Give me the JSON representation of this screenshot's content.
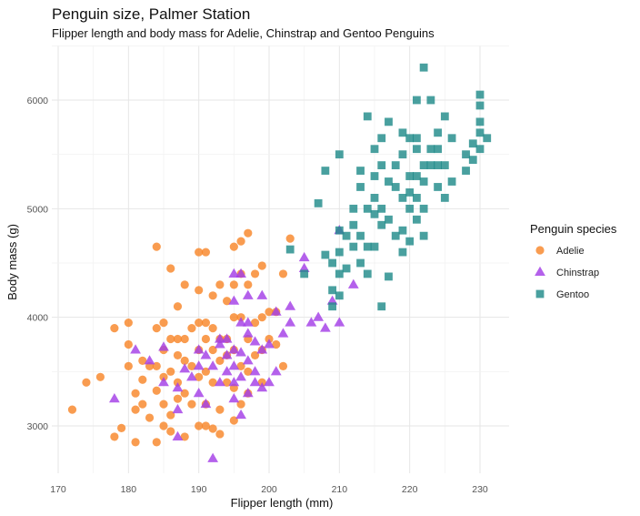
{
  "chart_data": {
    "type": "scatter",
    "title": "Penguin size, Palmer Station",
    "subtitle": "Flipper length and body mass for Adelie, Chinstrap and Gentoo Penguins",
    "xlabel": "Flipper length (mm)",
    "ylabel": "Body mass (g)",
    "xlim": [
      170,
      232
    ],
    "ylim": [
      2550,
      6450
    ],
    "xticks": [
      170,
      180,
      190,
      200,
      210,
      220,
      230
    ],
    "yticks": [
      3000,
      4000,
      5000,
      6000
    ],
    "grid": true,
    "legend": {
      "title": "Penguin species",
      "position": "right"
    },
    "series": [
      {
        "name": "Adelie",
        "color": "#F8862A",
        "marker": "circle",
        "points": [
          [
            172,
            3150
          ],
          [
            174,
            3400
          ],
          [
            176,
            3450
          ],
          [
            178,
            3900
          ],
          [
            178,
            2900
          ],
          [
            179,
            2980
          ],
          [
            180,
            3950
          ],
          [
            180,
            3750
          ],
          [
            180,
            3550
          ],
          [
            181,
            3300
          ],
          [
            181,
            2850
          ],
          [
            181,
            3150
          ],
          [
            182,
            3200
          ],
          [
            182,
            3600
          ],
          [
            182,
            3425
          ],
          [
            183,
            3550
          ],
          [
            183,
            3075
          ],
          [
            184,
            4650
          ],
          [
            184,
            3900
          ],
          [
            184,
            3550
          ],
          [
            184,
            3325
          ],
          [
            184,
            2850
          ],
          [
            185,
            3950
          ],
          [
            185,
            3700
          ],
          [
            185,
            3450
          ],
          [
            185,
            3200
          ],
          [
            185,
            3000
          ],
          [
            186,
            4450
          ],
          [
            186,
            3800
          ],
          [
            186,
            3500
          ],
          [
            186,
            3100
          ],
          [
            186,
            2950
          ],
          [
            187,
            4100
          ],
          [
            187,
            3800
          ],
          [
            187,
            3650
          ],
          [
            187,
            3400
          ],
          [
            187,
            3250
          ],
          [
            188,
            4300
          ],
          [
            188,
            3800
          ],
          [
            188,
            3600
          ],
          [
            188,
            3300
          ],
          [
            188,
            2900
          ],
          [
            189,
            3900
          ],
          [
            189,
            3550
          ],
          [
            189,
            3200
          ],
          [
            190,
            4600
          ],
          [
            190,
            4250
          ],
          [
            190,
            3950
          ],
          [
            190,
            3700
          ],
          [
            190,
            3450
          ],
          [
            190,
            3000
          ],
          [
            191,
            4600
          ],
          [
            191,
            3950
          ],
          [
            191,
            3800
          ],
          [
            191,
            3500
          ],
          [
            191,
            3200
          ],
          [
            191,
            3000
          ],
          [
            192,
            4200
          ],
          [
            192,
            3900
          ],
          [
            192,
            3700
          ],
          [
            192,
            3400
          ],
          [
            192,
            2975
          ],
          [
            193,
            4300
          ],
          [
            193,
            3800
          ],
          [
            193,
            3600
          ],
          [
            193,
            3150
          ],
          [
            193,
            2925
          ],
          [
            194,
            4150
          ],
          [
            194,
            3800
          ],
          [
            194,
            3650
          ],
          [
            194,
            3400
          ],
          [
            195,
            4650
          ],
          [
            195,
            4300
          ],
          [
            195,
            4000
          ],
          [
            195,
            3700
          ],
          [
            195,
            3350
          ],
          [
            195,
            3050
          ],
          [
            196,
            4700
          ],
          [
            196,
            4400
          ],
          [
            196,
            4000
          ],
          [
            196,
            3550
          ],
          [
            196,
            3200
          ],
          [
            197,
            4775
          ],
          [
            197,
            4300
          ],
          [
            197,
            3800
          ],
          [
            197,
            3500
          ],
          [
            197,
            3300
          ],
          [
            198,
            4400
          ],
          [
            198,
            3950
          ],
          [
            198,
            3650
          ],
          [
            199,
            4475
          ],
          [
            199,
            4000
          ],
          [
            199,
            3700
          ],
          [
            199,
            3400
          ],
          [
            200,
            4050
          ],
          [
            200,
            3800
          ],
          [
            201,
            4050
          ],
          [
            201,
            3750
          ],
          [
            202,
            4400
          ],
          [
            202,
            3550
          ],
          [
            203,
            4725
          ]
        ]
      },
      {
        "name": "Chinstrap",
        "color": "#A33EE6",
        "marker": "triangle",
        "points": [
          [
            178,
            3250
          ],
          [
            181,
            3700
          ],
          [
            183,
            3600
          ],
          [
            185,
            3725
          ],
          [
            185,
            3400
          ],
          [
            187,
            3150
          ],
          [
            187,
            2900
          ],
          [
            187,
            3350
          ],
          [
            188,
            3525
          ],
          [
            189,
            3450
          ],
          [
            190,
            3700
          ],
          [
            190,
            3300
          ],
          [
            190,
            3550
          ],
          [
            191,
            3200
          ],
          [
            191,
            3650
          ],
          [
            192,
            2700
          ],
          [
            192,
            3550
          ],
          [
            193,
            3800
          ],
          [
            193,
            3750
          ],
          [
            193,
            3400
          ],
          [
            194,
            3800
          ],
          [
            194,
            3650
          ],
          [
            194,
            3500
          ],
          [
            195,
            4400
          ],
          [
            195,
            4150
          ],
          [
            195,
            3700
          ],
          [
            195,
            3550
          ],
          [
            195,
            3400
          ],
          [
            195,
            3250
          ],
          [
            196,
            4400
          ],
          [
            196,
            3950
          ],
          [
            196,
            3675
          ],
          [
            196,
            3450
          ],
          [
            196,
            3100
          ],
          [
            197,
            4200
          ],
          [
            197,
            3950
          ],
          [
            197,
            3850
          ],
          [
            197,
            3600
          ],
          [
            197,
            3300
          ],
          [
            198,
            3775
          ],
          [
            198,
            3500
          ],
          [
            198,
            3400
          ],
          [
            199,
            4200
          ],
          [
            199,
            3700
          ],
          [
            199,
            3350
          ],
          [
            200,
            3750
          ],
          [
            200,
            3400
          ],
          [
            201,
            4050
          ],
          [
            201,
            3500
          ],
          [
            202,
            3850
          ],
          [
            203,
            4100
          ],
          [
            203,
            3950
          ],
          [
            205,
            4550
          ],
          [
            205,
            4450
          ],
          [
            206,
            3950
          ],
          [
            207,
            4000
          ],
          [
            208,
            3900
          ],
          [
            209,
            4150
          ],
          [
            210,
            4800
          ],
          [
            210,
            3950
          ],
          [
            212,
            4300
          ]
        ]
      },
      {
        "name": "Gentoo",
        "color": "#218B8A",
        "marker": "square",
        "points": [
          [
            203,
            4625
          ],
          [
            205,
            4400
          ],
          [
            207,
            5050
          ],
          [
            208,
            4575
          ],
          [
            208,
            5350
          ],
          [
            209,
            4500
          ],
          [
            209,
            4250
          ],
          [
            209,
            4100
          ],
          [
            210,
            5500
          ],
          [
            210,
            4800
          ],
          [
            210,
            4600
          ],
          [
            210,
            4400
          ],
          [
            210,
            4200
          ],
          [
            211,
            4750
          ],
          [
            211,
            4450
          ],
          [
            212,
            4650
          ],
          [
            212,
            5000
          ],
          [
            212,
            4850
          ],
          [
            213,
            5350
          ],
          [
            213,
            4500
          ],
          [
            213,
            4750
          ],
          [
            213,
            5200
          ],
          [
            214,
            5850
          ],
          [
            214,
            5000
          ],
          [
            214,
            4650
          ],
          [
            214,
            4400
          ],
          [
            215,
            5550
          ],
          [
            215,
            5300
          ],
          [
            215,
            4950
          ],
          [
            215,
            4650
          ],
          [
            215,
            5100
          ],
          [
            216,
            5650
          ],
          [
            216,
            5400
          ],
          [
            216,
            5000
          ],
          [
            216,
            4850
          ],
          [
            216,
            4100
          ],
          [
            217,
            5250
          ],
          [
            217,
            4900
          ],
          [
            217,
            4375
          ],
          [
            217,
            5800
          ],
          [
            218,
            5400
          ],
          [
            218,
            5200
          ],
          [
            218,
            4750
          ],
          [
            219,
            5700
          ],
          [
            219,
            5500
          ],
          [
            219,
            5100
          ],
          [
            219,
            4800
          ],
          [
            219,
            4600
          ],
          [
            220,
            5650
          ],
          [
            220,
            5300
          ],
          [
            220,
            5150
          ],
          [
            220,
            5000
          ],
          [
            220,
            4700
          ],
          [
            221,
            6000
          ],
          [
            221,
            5650
          ],
          [
            221,
            5550
          ],
          [
            221,
            5300
          ],
          [
            221,
            5100
          ],
          [
            221,
            4900
          ],
          [
            222,
            6300
          ],
          [
            222,
            5400
          ],
          [
            222,
            5250
          ],
          [
            222,
            5000
          ],
          [
            222,
            4750
          ],
          [
            223,
            6000
          ],
          [
            223,
            5550
          ],
          [
            223,
            5400
          ],
          [
            224,
            5700
          ],
          [
            224,
            5550
          ],
          [
            224,
            5400
          ],
          [
            224,
            5200
          ],
          [
            225,
            5850
          ],
          [
            225,
            5400
          ],
          [
            225,
            5100
          ],
          [
            226,
            5650
          ],
          [
            226,
            5250
          ],
          [
            228,
            5500
          ],
          [
            228,
            5350
          ],
          [
            229,
            5600
          ],
          [
            229,
            5450
          ],
          [
            230,
            5950
          ],
          [
            230,
            5700
          ],
          [
            230,
            5800
          ],
          [
            230,
            5550
          ],
          [
            230,
            6050
          ],
          [
            231,
            5650
          ]
        ]
      }
    ]
  }
}
